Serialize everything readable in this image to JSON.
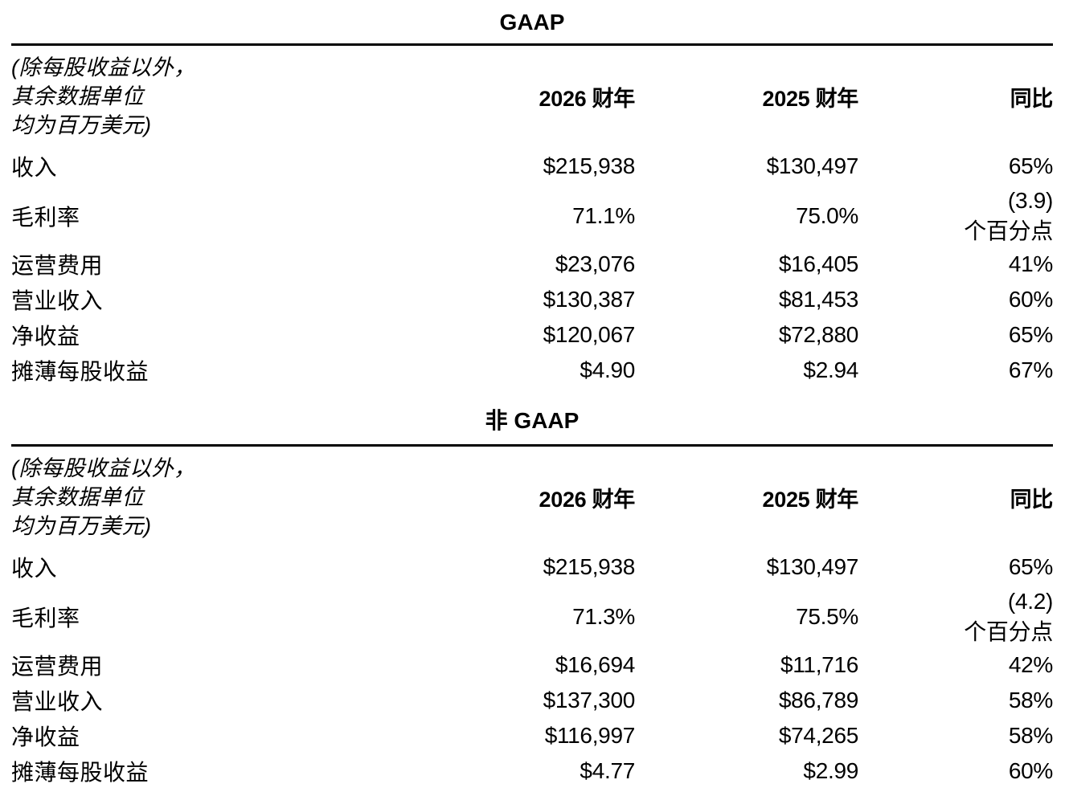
{
  "sections": [
    {
      "id": "gaap",
      "title": "GAAP",
      "note_lines": [
        "(除每股收益以外，",
        "其余数据单位",
        "均为百万美元)"
      ],
      "columns": {
        "fy2026": "2026 财年",
        "fy2025": "2025 财年",
        "yoy": "同比"
      },
      "rows": [
        {
          "label": "收入",
          "fy2026": "$215,938",
          "fy2025": "$130,497",
          "yoy": "65%"
        },
        {
          "label": "毛利率",
          "fy2026": "71.1%",
          "fy2025": "75.0%",
          "yoy": "(3.9)",
          "yoy_suffix": "个百分点"
        },
        {
          "label": "运营费用",
          "fy2026": "$23,076",
          "fy2025": "$16,405",
          "yoy": "41%"
        },
        {
          "label": "营业收入",
          "fy2026": "$130,387",
          "fy2025": "$81,453",
          "yoy": "60%"
        },
        {
          "label": "净收益",
          "fy2026": "$120,067",
          "fy2025": "$72,880",
          "yoy": "65%"
        },
        {
          "label": "摊薄每股收益",
          "fy2026": "$4.90",
          "fy2025": "$2.94",
          "yoy": "67%"
        }
      ]
    },
    {
      "id": "non_gaap",
      "title": "非 GAAP",
      "note_lines": [
        "(除每股收益以外，",
        "其余数据单位",
        "均为百万美元)"
      ],
      "columns": {
        "fy2026": "2026 财年",
        "fy2025": "2025 财年",
        "yoy": "同比"
      },
      "rows": [
        {
          "label": "收入",
          "fy2026": "$215,938",
          "fy2025": "$130,497",
          "yoy": "65%"
        },
        {
          "label": "毛利率",
          "fy2026": "71.3%",
          "fy2025": "75.5%",
          "yoy": "(4.2)",
          "yoy_suffix": "个百分点"
        },
        {
          "label": "运营费用",
          "fy2026": "$16,694",
          "fy2025": "$11,716",
          "yoy": "42%"
        },
        {
          "label": "营业收入",
          "fy2026": "$137,300",
          "fy2025": "$86,789",
          "yoy": "58%"
        },
        {
          "label": "净收益",
          "fy2026": "$116,997",
          "fy2025": "$74,265",
          "yoy": "58%"
        },
        {
          "label": "摊薄每股收益",
          "fy2026": "$4.77",
          "fy2025": "$2.99",
          "yoy": "60%"
        }
      ]
    }
  ]
}
